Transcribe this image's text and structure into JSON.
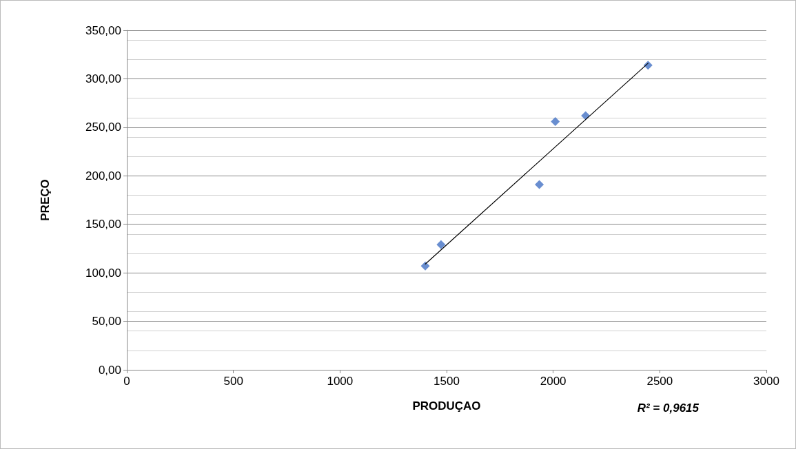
{
  "chart_data": {
    "type": "scatter",
    "xlabel": "PRODUÇAO",
    "ylabel": "PREÇO",
    "xlim": [
      0,
      3000
    ],
    "xticks": [
      0,
      500,
      1000,
      1500,
      2000,
      2500,
      3000
    ],
    "ylim": [
      0,
      350
    ],
    "yticks": [
      {
        "value": 0,
        "label": "0,00"
      },
      {
        "value": 50,
        "label": "50,00"
      },
      {
        "value": 100,
        "label": "100,00"
      },
      {
        "value": 150,
        "label": "150,00"
      },
      {
        "value": 200,
        "label": "200,00"
      },
      {
        "value": 250,
        "label": "250,00"
      },
      {
        "value": 300,
        "label": "300,00"
      },
      {
        "value": 350,
        "label": "350,00"
      }
    ],
    "grid": "y",
    "marker": "diamond",
    "series": [
      {
        "color": "#4472c4",
        "x": [
          1400,
          1474,
          1935,
          2010,
          2152,
          2445
        ],
        "values": [
          107,
          129,
          191,
          256,
          262,
          314
        ]
      },
      {
        "type": "line",
        "color": "#000000",
        "x": [
          1400,
          2445
        ],
        "values": [
          109,
          316
        ],
        "marker": "none",
        "line_style": "solid"
      }
    ],
    "annotations": [
      "R² = 0,9615"
    ]
  }
}
